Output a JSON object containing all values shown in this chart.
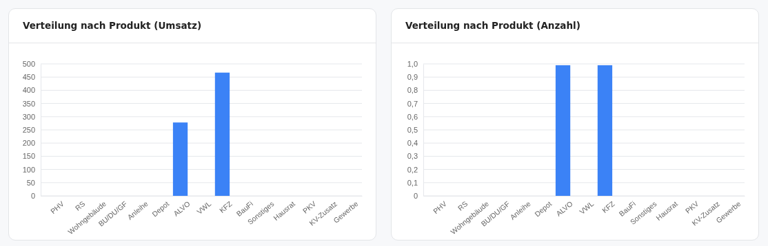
{
  "chart_data": [
    {
      "type": "bar",
      "title": "Verteilung nach Produkt (Umsatz)",
      "categories": [
        "PHV",
        "RS",
        "Wohngebäude",
        "BU/DU/GF",
        "Anleihe",
        "Depot",
        "ALVO",
        "VWL",
        "KFZ",
        "BauFi",
        "Sonstiges",
        "Hausrat",
        "PKV",
        "KV-Zusatz",
        "Gewerbe"
      ],
      "values": [
        0,
        0,
        0,
        0,
        0,
        0,
        278,
        0,
        467,
        0,
        0,
        0,
        0,
        0,
        0
      ],
      "color": "#3b82f6",
      "ylim": [
        0,
        500
      ],
      "yticks": [
        0,
        50,
        100,
        150,
        200,
        250,
        300,
        350,
        400,
        450,
        500
      ],
      "grid": "y"
    },
    {
      "type": "bar",
      "title": "Verteilung nach Produkt (Anzahl)",
      "categories": [
        "PHV",
        "RS",
        "Wohngebäude",
        "BU/DU/GF",
        "Anleihe",
        "Depot",
        "ALVO",
        "VWL",
        "KFZ",
        "BauFi",
        "Sonstiges",
        "Hausrat",
        "PKV",
        "KV-Zusatz",
        "Gewerbe"
      ],
      "values": [
        0,
        0,
        0,
        0,
        0,
        0,
        0.99,
        0,
        0.99,
        0,
        0,
        0,
        0,
        0,
        0
      ],
      "color": "#3b82f6",
      "ylim": [
        0,
        1
      ],
      "yticks": [
        0,
        {
          "value": 0.1,
          "label": "0,1"
        },
        {
          "value": 0.2,
          "label": "0,2"
        },
        {
          "value": 0.3,
          "label": "0,3"
        },
        {
          "value": 0.4,
          "label": "0,4"
        },
        {
          "value": 0.5,
          "label": "0,5"
        },
        {
          "value": 0.6,
          "label": "0,6"
        },
        {
          "value": 0.7,
          "label": "0,7"
        },
        {
          "value": 0.8,
          "label": "0,8"
        },
        {
          "value": 0.9,
          "label": "0,9"
        },
        {
          "value": 1,
          "label": "1,0"
        }
      ],
      "grid": "y"
    }
  ]
}
